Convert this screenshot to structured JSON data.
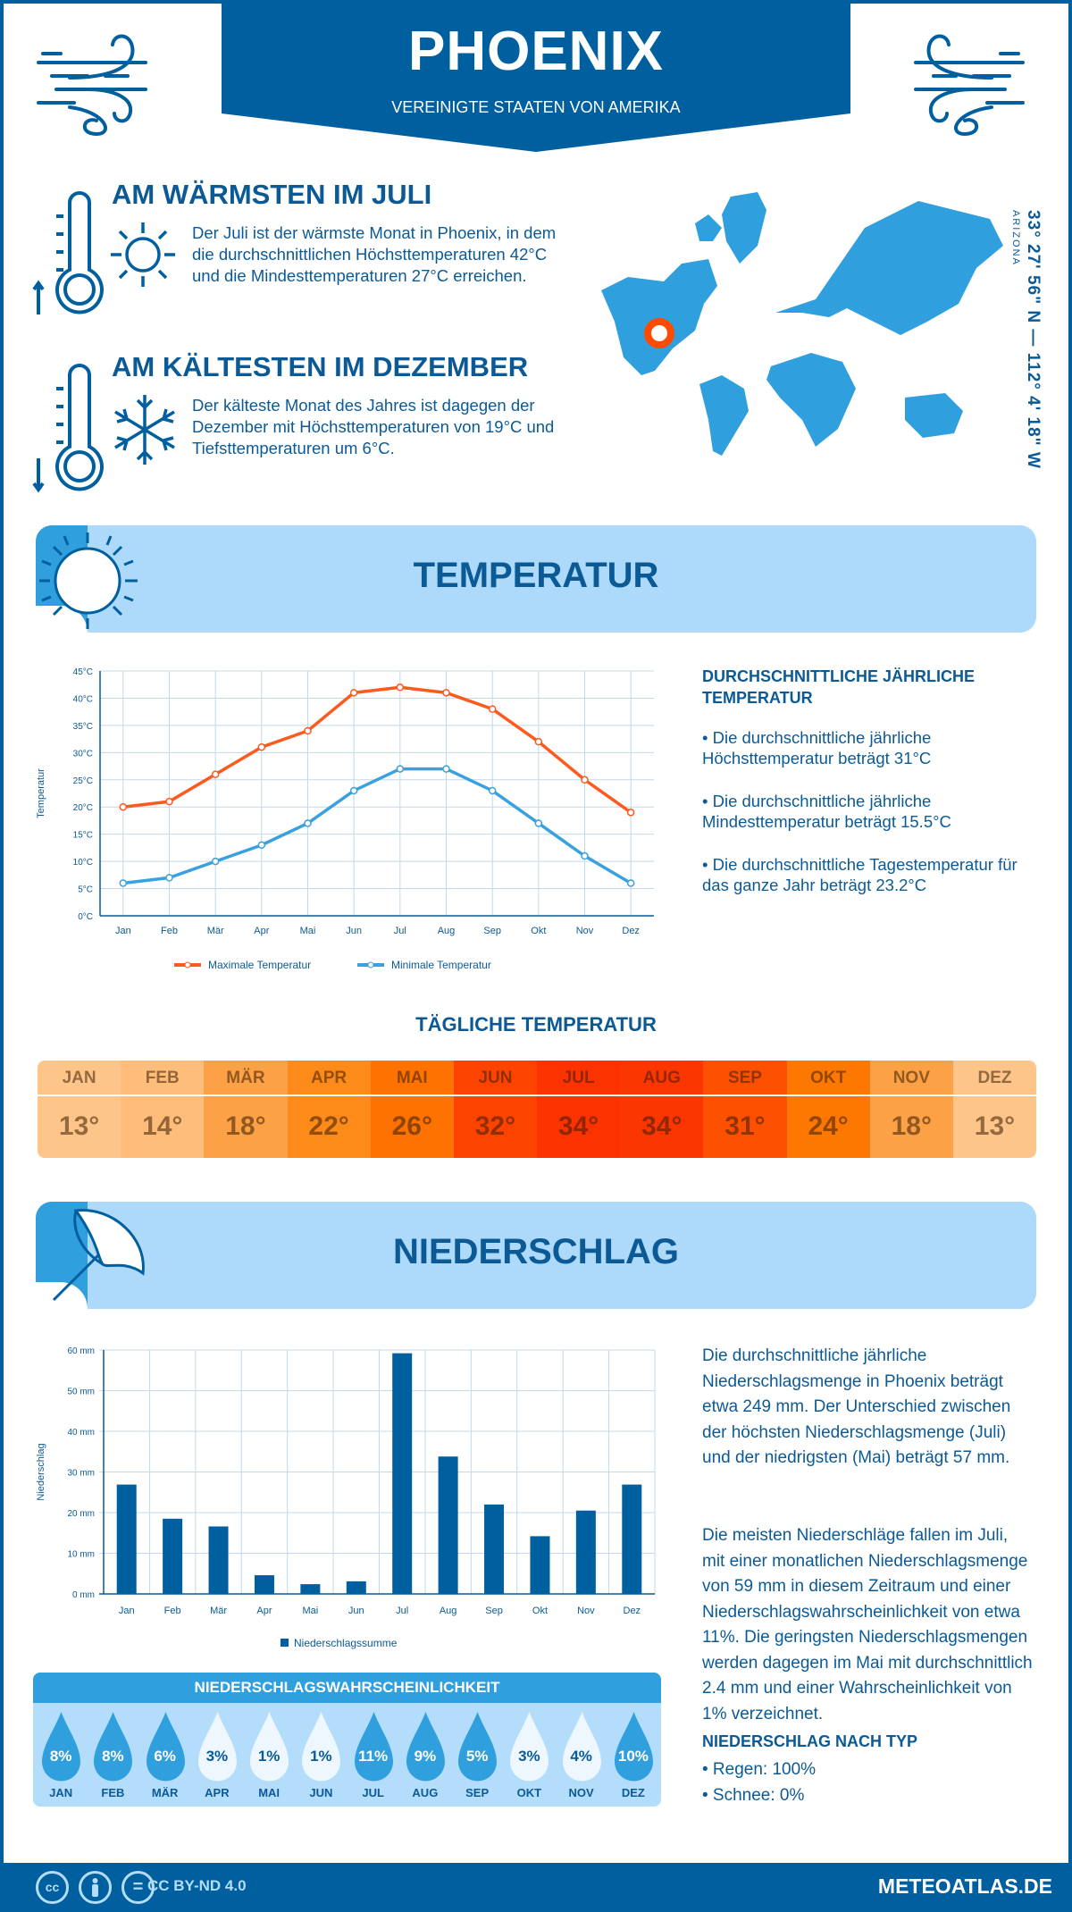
{
  "header": {
    "title": "PHOENIX",
    "subtitle": "VEREINIGTE STAATEN VON AMERIKA"
  },
  "warmest": {
    "heading": "AM WÄRMSTEN IM JULI",
    "text": "Der Juli ist der wärmste Monat in Phoenix, in dem die durchschnittlichen Höchsttemperaturen 42°C und die Mindesttemperaturen 27°C erreichen."
  },
  "coldest": {
    "heading": "AM KÄLTESTEN IM DEZEMBER",
    "text": "Der kälteste Monat des Jahres ist dagegen der Dezember mit Höchsttemperaturen von 19°C und Tiefsttemperaturen um 6°C."
  },
  "location": {
    "coords": "33° 27' 56\" N — 112° 4' 18\" W",
    "region": "ARIZONA",
    "marker_color": "#ff4a00"
  },
  "temperature_section": {
    "title": "TEMPERATUR",
    "annual_heading": "DURCHSCHNITTLICHE JÄHRLICHE TEMPERATUR",
    "bullets": [
      "• Die durchschnittliche jährliche Höchsttemperatur beträgt 31°C",
      "• Die durchschnittliche jährliche Mindesttemperatur beträgt 15.5°C",
      "• Die durchschnittliche Tagestemperatur für das ganze Jahr beträgt 23.2°C"
    ],
    "daily_heading": "TÄGLICHE TEMPERATUR",
    "daily": [
      {
        "month": "JAN",
        "value": "13°",
        "color": "#fec58a"
      },
      {
        "month": "FEB",
        "value": "14°",
        "color": "#febd7a"
      },
      {
        "month": "MÄR",
        "value": "18°",
        "color": "#fda146"
      },
      {
        "month": "APR",
        "value": "22°",
        "color": "#fd8b1a"
      },
      {
        "month": "MAI",
        "value": "26°",
        "color": "#fd7200"
      },
      {
        "month": "JUN",
        "value": "32°",
        "color": "#fc4400"
      },
      {
        "month": "JUL",
        "value": "34°",
        "color": "#fc3200"
      },
      {
        "month": "AUG",
        "value": "34°",
        "color": "#fc3600"
      },
      {
        "month": "SEP",
        "value": "31°",
        "color": "#fd5000"
      },
      {
        "month": "OKT",
        "value": "24°",
        "color": "#fd7800"
      },
      {
        "month": "NOV",
        "value": "18°",
        "color": "#fda146"
      },
      {
        "month": "DEZ",
        "value": "13°",
        "color": "#fec58a"
      }
    ]
  },
  "precipitation_section": {
    "title": "NIEDERSCHLAG",
    "text1": "Die durchschnittliche jährliche Niederschlagsmenge in Phoenix beträgt etwa 249 mm. Der Unterschied zwischen der höchsten Niederschlagsmenge (Juli) und der niedrigsten (Mai) beträgt 57 mm.",
    "text2": "Die meisten Niederschläge fallen im Juli, mit einer monatlichen Niederschlagsmenge von 59 mm in diesem Zeitraum und einer Niederschlagswahrscheinlichkeit von etwa 11%. Die geringsten Niederschlagsmengen werden dagegen im Mai mit durchschnittlich 2.4 mm und einer Wahrscheinlichkeit von 1% verzeichnet.",
    "type_heading": "NIEDERSCHLAG NACH TYP",
    "types": [
      "• Regen: 100%",
      "• Schnee: 0%"
    ],
    "prob_heading": "NIEDERSCHLAGSWAHRSCHEINLICHKEIT",
    "probability": [
      {
        "month": "JAN",
        "value": "8%"
      },
      {
        "month": "FEB",
        "value": "8%"
      },
      {
        "month": "MÄR",
        "value": "6%"
      },
      {
        "month": "APR",
        "value": "3%"
      },
      {
        "month": "MAI",
        "value": "1%"
      },
      {
        "month": "JUN",
        "value": "1%"
      },
      {
        "month": "JUL",
        "value": "11%"
      },
      {
        "month": "AUG",
        "value": "9%"
      },
      {
        "month": "SEP",
        "value": "5%"
      },
      {
        "month": "OKT",
        "value": "3%"
      },
      {
        "month": "NOV",
        "value": "4%"
      },
      {
        "month": "DEZ",
        "value": "10%"
      }
    ]
  },
  "chart_data": [
    {
      "type": "line",
      "categories": [
        "Jan",
        "Feb",
        "Mär",
        "Apr",
        "Mai",
        "Jun",
        "Jul",
        "Aug",
        "Sep",
        "Okt",
        "Nov",
        "Dez"
      ],
      "ylabel": "Temperatur",
      "ylim": [
        0,
        45
      ],
      "yticks": [
        "0°C",
        "5°C",
        "10°C",
        "15°C",
        "20°C",
        "25°C",
        "30°C",
        "35°C",
        "40°C",
        "45°C"
      ],
      "grid": true,
      "legend": "bottom",
      "series": [
        {
          "name": "Maximale Temperatur",
          "color": "#fc5a1f",
          "values": [
            20,
            21,
            26,
            31,
            34,
            41,
            42,
            41,
            38,
            32,
            25,
            19
          ]
        },
        {
          "name": "Minimale Temperatur",
          "color": "#3aa0de",
          "values": [
            6,
            7,
            10,
            13,
            17,
            23,
            27,
            27,
            23,
            17,
            11,
            6
          ]
        }
      ]
    },
    {
      "type": "bar",
      "categories": [
        "Jan",
        "Feb",
        "Mär",
        "Apr",
        "Mai",
        "Jun",
        "Jul",
        "Aug",
        "Sep",
        "Okt",
        "Nov",
        "Dez"
      ],
      "ylabel": "Niederschlag",
      "ylim": [
        0,
        60
      ],
      "yticks": [
        "0 mm",
        "10 mm",
        "20 mm",
        "30 mm",
        "40 mm",
        "50 mm",
        "60 mm"
      ],
      "grid": true,
      "legend": "bottom",
      "series": [
        {
          "name": "Niederschlagssumme",
          "color": "#005f9e",
          "values": [
            26.9,
            18.5,
            16.6,
            4.6,
            2.4,
            3.1,
            59.2,
            33.8,
            22,
            14.2,
            20.5,
            26.9
          ]
        }
      ]
    }
  ],
  "footer": {
    "license": "CC BY-ND 4.0",
    "site": "METEOATLAS.DE",
    "cc": "cc",
    "eq": "="
  }
}
